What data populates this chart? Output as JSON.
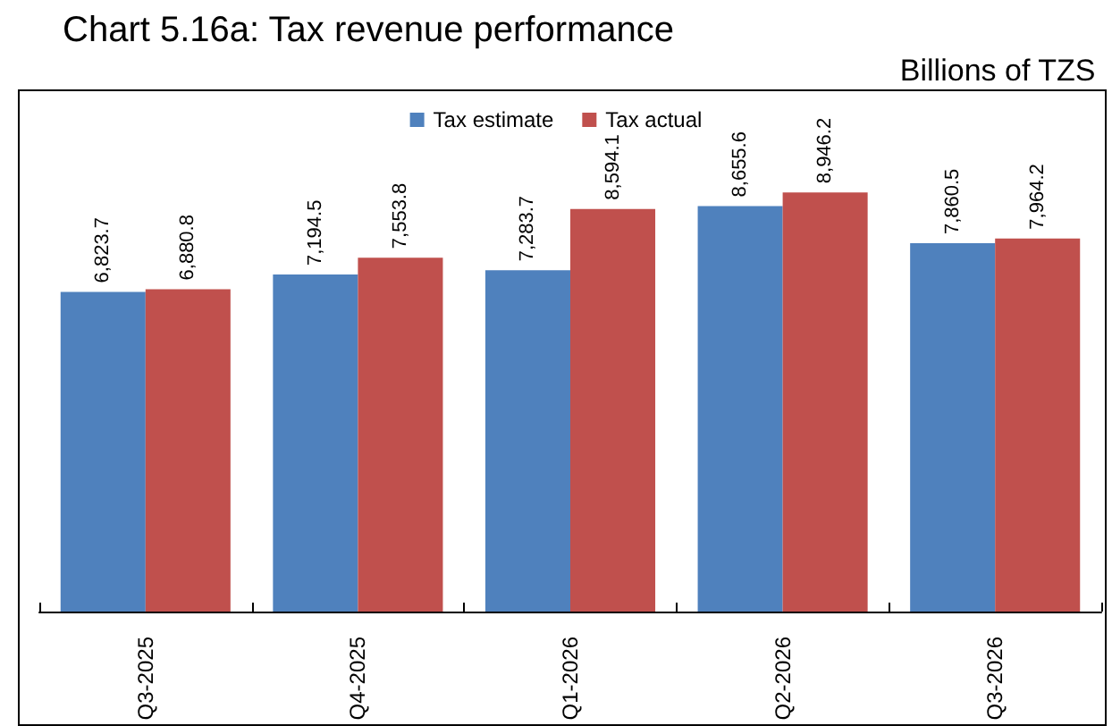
{
  "chart_data": {
    "type": "bar",
    "title": "Chart 5.16a: Tax revenue performance",
    "subtitle": "Billions of TZS",
    "categories": [
      "Q3-2025",
      "Q4-2025",
      "Q1-2026",
      "Q2-2026",
      "Q3-2026"
    ],
    "series": [
      {
        "name": "Tax estimate",
        "color": "#4f81bd",
        "values": [
          6823.7,
          7194.5,
          7283.7,
          8655.6,
          7860.5
        ],
        "value_labels": [
          "6,823.7",
          "7,194.5",
          "7,283.7",
          "8,655.6",
          "7,860.5"
        ]
      },
      {
        "name": "Tax actual",
        "color": "#c0504d",
        "values": [
          6880.8,
          7553.8,
          8594.1,
          8946.2,
          7964.2
        ],
        "value_labels": [
          "6,880.8",
          "7,553.8",
          "8,594.1",
          "8,946.2",
          "7,964.2"
        ]
      }
    ],
    "tick_labels": "x",
    "legend": "top",
    "grid": false
  }
}
